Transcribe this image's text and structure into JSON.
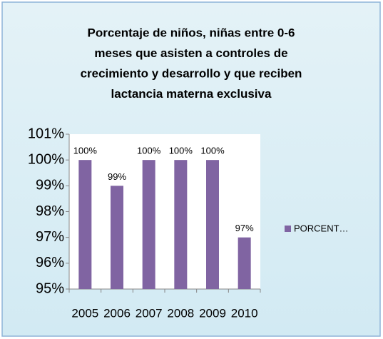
{
  "chart_data": {
    "type": "bar",
    "title": [
      "Porcentaje de niños, niñas entre 0-6",
      "meses que asisten a controles de",
      "crecimiento y desarrollo y que reciben",
      "lactancia materna exclusiva"
    ],
    "categories": [
      "2005",
      "2006",
      "2007",
      "2008",
      "2009",
      "2010"
    ],
    "series": [
      {
        "name": "PORCENT…",
        "color": "#8064a2",
        "values": [
          100,
          99,
          100,
          100,
          100,
          97
        ],
        "value_labels": [
          "100%",
          "99%",
          "100%",
          "100%",
          "100%",
          "97%"
        ]
      }
    ],
    "ylim": [
      95,
      101
    ],
    "yticks": [
      {
        "value": 95,
        "label": "95%"
      },
      {
        "value": 96,
        "label": "96%"
      },
      {
        "value": 97,
        "label": "97%"
      },
      {
        "value": 98,
        "label": "98%"
      },
      {
        "value": 99,
        "label": "99%"
      },
      {
        "value": 100,
        "label": "100%"
      },
      {
        "value": 101,
        "label": "101%"
      }
    ],
    "grid": false,
    "legend": "right"
  }
}
